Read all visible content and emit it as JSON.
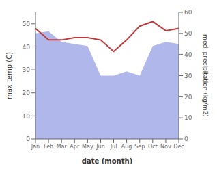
{
  "chart_data": {
    "type": "line",
    "categories": [
      "Jan",
      "Feb",
      "Mar",
      "Apr",
      "May",
      "Jun",
      "Jul",
      "Aug",
      "Sep",
      "Oct",
      "Nov",
      "Dec"
    ],
    "xlabel": "date (month)",
    "ylabel": "max temp (C)",
    "y2label": "med. precipitation (kg/m2)",
    "series": [
      {
        "type": "area",
        "axis": "y2",
        "color": "#b0b8eb",
        "values": [
          50,
          51,
          46,
          45,
          44,
          30,
          30,
          32,
          30,
          44,
          46,
          45
        ]
      },
      {
        "type": "line",
        "color": "#c0393a",
        "values": [
          48,
          43,
          43,
          44,
          44,
          43,
          38,
          43,
          49,
          51,
          47,
          48
        ]
      }
    ],
    "ylim": [
      0,
      55
    ],
    "yticks": [
      0,
      10,
      20,
      30,
      40,
      50
    ],
    "y2lim": [
      0,
      60
    ],
    "y2ticks": [
      0,
      10,
      20,
      30,
      40,
      50,
      60
    ],
    "grid": false
  }
}
